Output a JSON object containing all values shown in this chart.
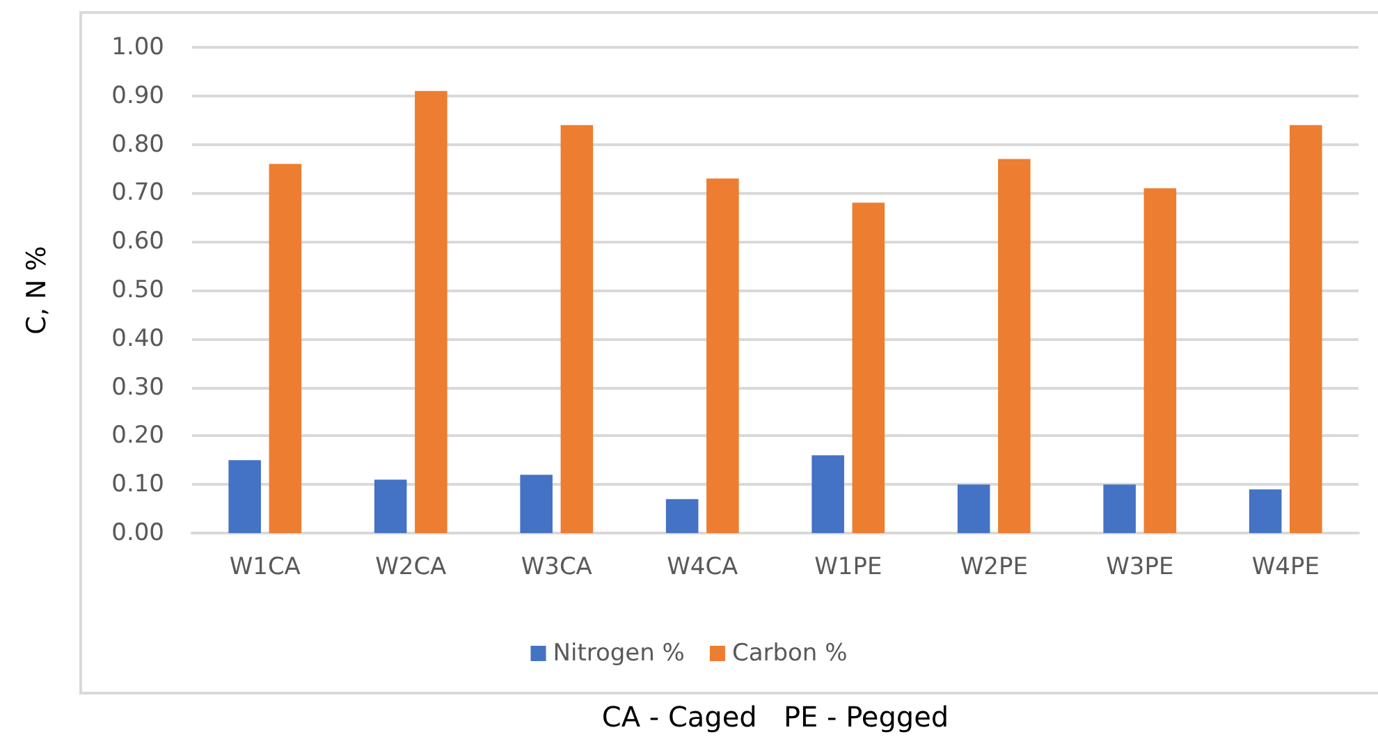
{
  "chart_data": {
    "type": "bar",
    "xlabel": "CA - Caged   PE - Pegged",
    "ylabel": "C, N %",
    "categories": [
      "W1CA",
      "W2CA",
      "W3CA",
      "W4CA",
      "W1PE",
      "W2PE",
      "W3PE",
      "W4PE"
    ],
    "series": [
      {
        "name": "Nitrogen %",
        "color": "#4472c4",
        "values": [
          0.15,
          0.11,
          0.12,
          0.07,
          0.16,
          0.1,
          0.1,
          0.09
        ]
      },
      {
        "name": "Carbon %",
        "color": "#ed7d31",
        "values": [
          0.76,
          0.91,
          0.84,
          0.73,
          0.68,
          0.77,
          0.71,
          0.84
        ]
      }
    ],
    "ylim": [
      0,
      1
    ],
    "yticks": [
      {
        "value": 0,
        "label": "0.00"
      },
      {
        "value": 0.1,
        "label": "0.10"
      },
      {
        "value": 0.2,
        "label": "0.20"
      },
      {
        "value": 0.3,
        "label": "0.30"
      },
      {
        "value": 0.4,
        "label": "0.40"
      },
      {
        "value": 0.5,
        "label": "0.50"
      },
      {
        "value": 0.6,
        "label": "0.60"
      },
      {
        "value": 0.7,
        "label": "0.70"
      },
      {
        "value": 0.8,
        "label": "0.80"
      },
      {
        "value": 0.9,
        "label": "0.90"
      },
      {
        "value": 1,
        "label": "1.00"
      }
    ],
    "grid": "y",
    "legend": "bottom"
  }
}
